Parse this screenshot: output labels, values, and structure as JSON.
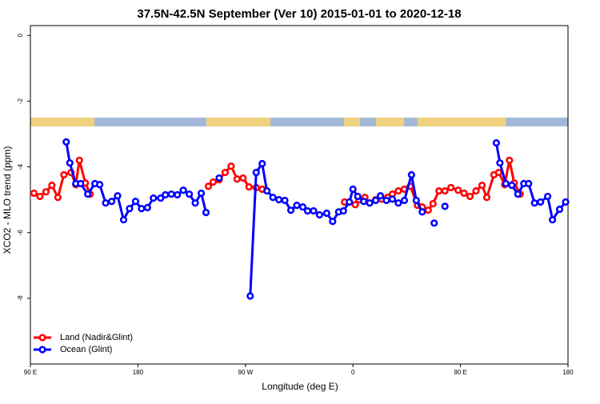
{
  "chart_data": {
    "type": "line",
    "title": "37.5N-42.5N September (Ver 10)   2015-01-01 to 2020-12-18",
    "x_label": "Longitude (deg E)",
    "y_label": "XCO2 - MLO trend (ppm)",
    "xlim": [
      90,
      540
    ],
    "xticks": [
      {
        "value": 90,
        "label": "90 E"
      },
      {
        "value": 180,
        "label": "180"
      },
      {
        "value": 270,
        "label": "90 W"
      },
      {
        "value": 360,
        "label": "0"
      },
      {
        "value": 450,
        "label": "90 E"
      },
      {
        "value": 540,
        "label": "180"
      }
    ],
    "ylim": [
      -10,
      0.3
    ],
    "yticks": [
      0,
      -2,
      -4,
      -6,
      -8
    ],
    "legend": "bottom-left",
    "series": [
      {
        "name": "Land (Nadir&Glint)",
        "color": "#ff0000",
        "x": [
          93,
          98,
          103,
          108,
          113,
          118,
          124,
          128,
          131,
          136,
          140,
          null,
          239,
          243,
          248,
          253,
          258,
          263,
          268,
          273,
          279,
          284,
          null,
          353,
          362,
          365,
          370,
          374,
          379,
          384,
          389,
          393,
          398,
          403,
          408,
          414,
          418,
          423,
          427,
          432,
          437,
          442,
          448,
          453,
          458,
          463,
          468,
          472,
          478,
          482,
          487,
          491,
          495,
          500
        ],
        "values": [
          -4.8,
          -4.9,
          -4.76,
          -4.56,
          -4.93,
          -4.24,
          -4.17,
          -4.54,
          -3.8,
          -4.49,
          -4.83,
          null,
          -4.59,
          -4.46,
          -4.39,
          -4.17,
          -3.98,
          -4.37,
          -4.34,
          -4.61,
          -4.63,
          -4.68,
          null,
          -5.07,
          -5.15,
          -5.0,
          -4.93,
          -5.1,
          -5.0,
          -4.98,
          -4.93,
          -4.83,
          -4.73,
          -4.68,
          -4.59,
          -5.17,
          -5.22,
          -5.32,
          -5.12,
          -4.73,
          -4.73,
          -4.63,
          -4.71,
          -4.8,
          -4.9,
          -4.73,
          -4.56,
          -4.93,
          -4.24,
          -4.17,
          -4.54,
          -3.8,
          -4.49,
          -4.83
        ]
      },
      {
        "name": "Ocean (Glint)",
        "color": "#0000ff",
        "x": [
          120,
          123,
          128,
          132,
          138,
          144,
          148,
          153,
          158,
          163,
          168,
          173,
          178,
          183,
          188,
          193,
          199,
          203,
          208,
          213,
          218,
          223,
          228,
          233,
          237,
          null,
          248,
          null,
          274,
          279,
          284,
          288,
          293,
          298,
          303,
          308,
          313,
          318,
          322,
          327,
          332,
          338,
          343,
          348,
          352,
          357,
          360,
          364,
          369,
          374,
          379,
          383,
          388,
          393,
          398,
          403,
          409,
          413,
          418,
          null,
          428,
          null,
          437,
          null,
          480,
          483,
          488,
          493,
          498,
          503,
          507,
          512,
          517,
          523,
          527,
          533,
          538
        ],
        "values": [
          -3.24,
          -3.88,
          -4.51,
          -4.51,
          -4.83,
          -4.51,
          -4.54,
          -5.1,
          -5.05,
          -4.88,
          -5.61,
          -5.27,
          -5.05,
          -5.27,
          -5.24,
          -4.95,
          -4.95,
          -4.85,
          -4.83,
          -4.85,
          -4.71,
          -4.83,
          -5.1,
          -4.8,
          -5.39,
          null,
          -4.34,
          null,
          -7.93,
          -4.17,
          -3.9,
          -4.73,
          -4.93,
          -5.0,
          -5.02,
          -5.32,
          -5.17,
          -5.22,
          -5.34,
          -5.34,
          -5.46,
          -5.41,
          -5.66,
          -5.37,
          -5.34,
          -5.07,
          -4.68,
          -4.9,
          -5.05,
          -5.1,
          -5.02,
          -4.88,
          -5.02,
          -4.98,
          -5.1,
          -5.02,
          -4.24,
          -5.02,
          -5.37,
          null,
          -5.71,
          null,
          -5.2,
          null,
          -3.27,
          -3.88,
          -4.51,
          -4.56,
          -4.83,
          -4.51,
          -4.51,
          -5.1,
          -5.07,
          -4.9,
          -5.61,
          -5.29,
          -5.07
        ]
      }
    ]
  }
}
